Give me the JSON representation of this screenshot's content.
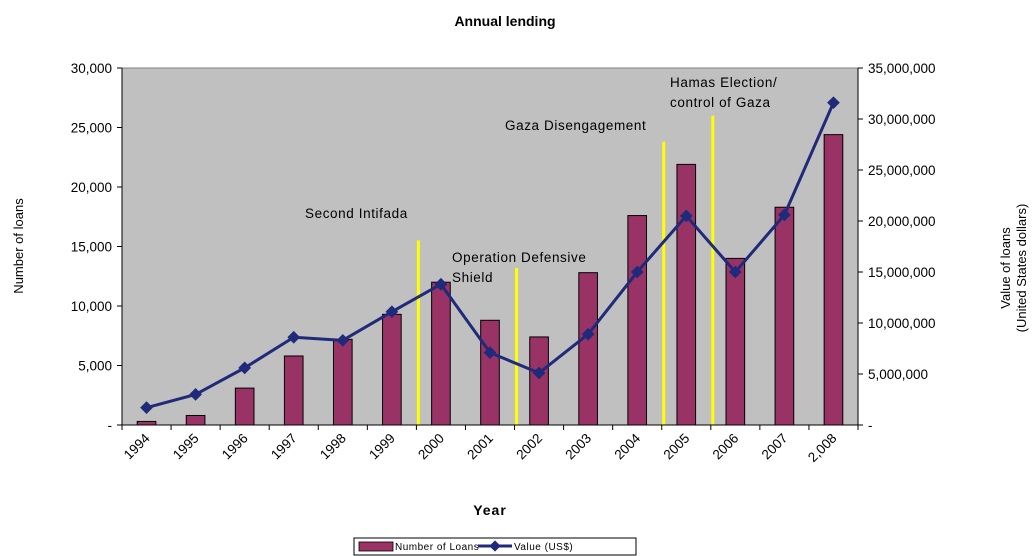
{
  "chart_data": {
    "type": "bar",
    "title": "Annual lending",
    "xlabel": "Year",
    "ylabel": "Number of loans",
    "y2label": [
      "Value of loans",
      "(United States dollars)"
    ],
    "categories": [
      "1994",
      "1995",
      "1996",
      "1997",
      "1998",
      "1999",
      "2000",
      "2001",
      "2002",
      "2003",
      "2004",
      "2005",
      "2006",
      "2007",
      "2,008"
    ],
    "ylim": [
      0,
      30000
    ],
    "y2lim": [
      0,
      35000000
    ],
    "yticks": [
      "-",
      "5,000",
      "10,000",
      "15,000",
      "20,000",
      "25,000",
      "30,000"
    ],
    "y2ticks": [
      "-",
      "5,000,000",
      "10,000,000",
      "15,000,000",
      "20,000,000",
      "25,000,000",
      "30,000,000",
      "35,000,000"
    ],
    "grid": false,
    "legend_position": "bottom-center",
    "series": [
      {
        "name": "Number of Loans",
        "type": "bar",
        "axis": "left",
        "color": "#993366",
        "values": [
          300,
          800,
          3100,
          5800,
          7200,
          9300,
          12000,
          8800,
          7400,
          12800,
          17600,
          21900,
          14000,
          18300,
          24400
        ]
      },
      {
        "name": "Value (US$)",
        "type": "line",
        "axis": "right",
        "color": "#1f2a7a",
        "values": [
          1700000,
          3000000,
          5600000,
          8600000,
          8300000,
          11100000,
          13800000,
          7100000,
          5100000,
          8900000,
          15000000,
          20500000,
          15000000,
          20600000,
          31600000
        ]
      }
    ],
    "annotations": [
      {
        "lines": [
          "Second Intifada"
        ],
        "year": 2000,
        "line_top": 15500,
        "color": "#ffff00"
      },
      {
        "lines": [
          "Operation Defensive",
          "Shield"
        ],
        "year": 2002,
        "line_top": 13200,
        "color": "#ffff00"
      },
      {
        "lines": [
          "Gaza Disengagement"
        ],
        "year": 2005,
        "line_top": 23800,
        "color": "#ffff00"
      },
      {
        "lines": [
          "Hamas Election/",
          "control of Gaza"
        ],
        "year": 2006,
        "line_top": 26000,
        "color": "#ffff00"
      }
    ],
    "plot_background": "#c0c0c0"
  }
}
